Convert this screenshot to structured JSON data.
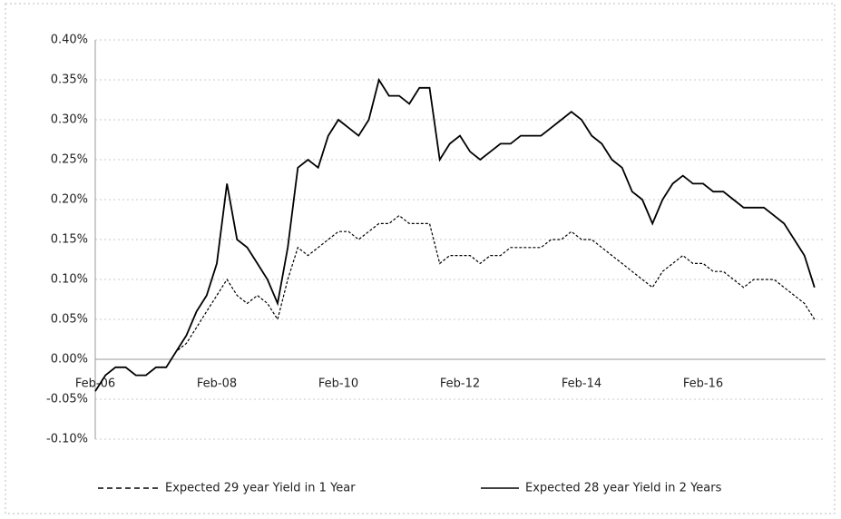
{
  "chart_data": {
    "type": "line",
    "categories": [
      "Feb-06",
      null,
      null,
      null,
      null,
      null,
      null,
      null,
      null,
      null,
      null,
      null,
      "Feb-08",
      null,
      null,
      null,
      null,
      null,
      null,
      null,
      null,
      null,
      null,
      null,
      "Feb-10",
      null,
      null,
      null,
      null,
      null,
      null,
      null,
      null,
      null,
      null,
      null,
      "Feb-12",
      null,
      null,
      null,
      null,
      null,
      null,
      null,
      null,
      null,
      null,
      null,
      "Feb-14",
      null,
      null,
      null,
      null,
      null,
      null,
      null,
      null,
      null,
      null,
      null,
      "Feb-16",
      null,
      null,
      null,
      null,
      null,
      null,
      null,
      null,
      null,
      null,
      null
    ],
    "series": [
      {
        "name": "Expected 29 year Yield in 1 Year",
        "color": "#000000",
        "linestyle": "dashed",
        "values": [
          -0.04,
          -0.02,
          -0.01,
          -0.01,
          -0.02,
          -0.02,
          -0.01,
          -0.01,
          0.01,
          0.02,
          0.04,
          0.06,
          0.08,
          0.1,
          0.08,
          0.07,
          0.08,
          0.07,
          0.05,
          0.1,
          0.14,
          0.13,
          0.14,
          0.15,
          0.16,
          0.16,
          0.15,
          0.16,
          0.17,
          0.17,
          0.18,
          0.17,
          0.17,
          0.17,
          0.12,
          0.13,
          0.13,
          0.13,
          0.12,
          0.13,
          0.13,
          0.14,
          0.14,
          0.14,
          0.14,
          0.15,
          0.15,
          0.16,
          0.15,
          0.15,
          0.14,
          0.13,
          0.12,
          0.11,
          0.1,
          0.09,
          0.11,
          0.12,
          0.13,
          0.12,
          0.12,
          0.11,
          0.11,
          0.1,
          0.09,
          0.1,
          0.1,
          0.1,
          0.09,
          0.08,
          0.07,
          0.05
        ]
      },
      {
        "name": "Expected 28 year Yield in 2 Years",
        "color": "#000000",
        "linestyle": "solid",
        "values": [
          -0.04,
          -0.02,
          -0.01,
          -0.01,
          -0.02,
          -0.02,
          -0.01,
          -0.01,
          0.01,
          0.03,
          0.06,
          0.08,
          0.12,
          0.22,
          0.15,
          0.14,
          0.12,
          0.1,
          0.07,
          0.14,
          0.24,
          0.25,
          0.24,
          0.28,
          0.3,
          0.29,
          0.28,
          0.3,
          0.35,
          0.33,
          0.33,
          0.32,
          0.34,
          0.34,
          0.25,
          0.27,
          0.28,
          0.26,
          0.25,
          0.26,
          0.27,
          0.27,
          0.28,
          0.28,
          0.28,
          0.29,
          0.3,
          0.31,
          0.3,
          0.28,
          0.27,
          0.25,
          0.24,
          0.21,
          0.2,
          0.17,
          0.2,
          0.22,
          0.23,
          0.22,
          0.22,
          0.21,
          0.21,
          0.2,
          0.19,
          0.19,
          0.19,
          0.18,
          0.17,
          0.15,
          0.13,
          0.09
        ]
      }
    ],
    "ylim": [
      -0.1,
      0.4
    ],
    "yticks": [
      {
        "value": -0.1,
        "label": "-0.10%"
      },
      {
        "value": -0.05,
        "label": "-0.05%"
      },
      {
        "value": 0,
        "label": "0.00%"
      },
      {
        "value": 0.05,
        "label": "0.05%"
      },
      {
        "value": 0.1,
        "label": "0.10%"
      },
      {
        "value": 0.15,
        "label": "0.15%"
      },
      {
        "value": 0.2,
        "label": "0.20%"
      },
      {
        "value": 0.25,
        "label": "0.25%"
      },
      {
        "value": 0.3,
        "label": "0.30%"
      },
      {
        "value": 0.35,
        "label": "0.35%"
      },
      {
        "value": 0.4,
        "label": "0.40%"
      }
    ],
    "grid": true,
    "legend": "bottom"
  }
}
